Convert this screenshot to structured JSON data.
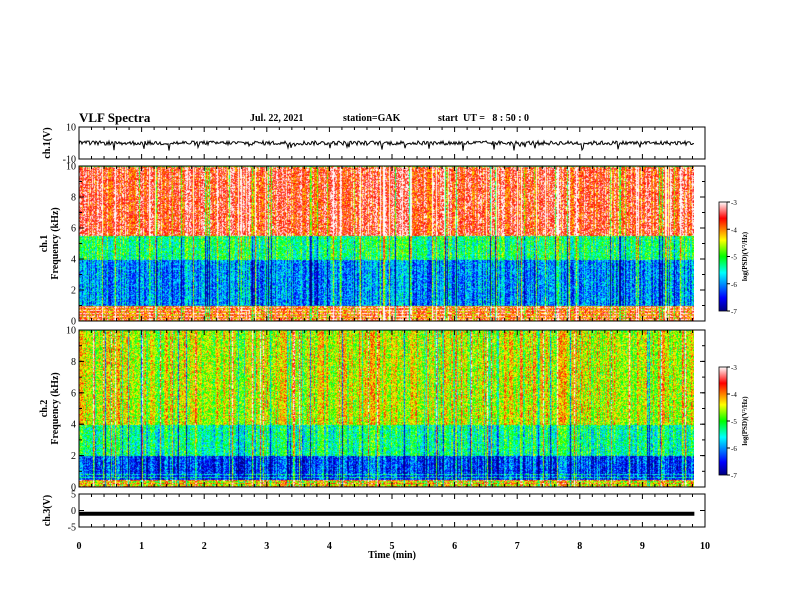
{
  "header": {
    "title": "VLF Spectra",
    "date": "Jul. 22, 2021",
    "station": "station=GAK",
    "start": "start  UT =   8 : 50 : 0"
  },
  "chart_data": [
    {
      "type": "line",
      "panel": "ch1-waveform",
      "ylabel": "ch.1(V)",
      "ylim": [
        -10,
        10
      ],
      "yticks": [
        "10",
        "-10"
      ],
      "xlim": [
        0,
        10
      ],
      "series": [
        {
          "values_summary": "noisy waveform centered near 0 V with occasional negative spikes to about -4 V"
        }
      ]
    },
    {
      "type": "heatmap",
      "panel": "ch1-spectrogram",
      "ylabel_line1": "ch.1",
      "ylabel_line2": "Frequency  (kHz)",
      "ylim": [
        0,
        10
      ],
      "yticks": [
        "0",
        "2",
        "4",
        "6",
        "8",
        "10"
      ],
      "xlim": [
        0,
        10
      ],
      "data_end_min": 9.83,
      "colorbar": {
        "label": "log(PSD)(V²/Hz)",
        "range": [
          -7,
          -3
        ],
        "ticks": [
          "-3",
          "-4",
          "-5",
          "-6",
          "-7"
        ]
      },
      "bands": [
        {
          "fmin": 0,
          "fmax": 1,
          "level": -4.0,
          "note": "banded narrowband lines"
        },
        {
          "fmin": 1,
          "fmax": 4,
          "level": -6.0
        },
        {
          "fmin": 4,
          "fmax": 5.5,
          "level": -5.2
        },
        {
          "fmin": 5.5,
          "fmax": 10,
          "level": -3.5
        }
      ]
    },
    {
      "type": "heatmap",
      "panel": "ch2-spectrogram",
      "ylabel_line1": "ch.2",
      "ylabel_line2": "Frequency  (kHz)",
      "ylim": [
        0,
        10
      ],
      "yticks": [
        "0",
        "2",
        "4",
        "6",
        "8",
        "10"
      ],
      "xlim": [
        0,
        10
      ],
      "data_end_min": 9.83,
      "colorbar": {
        "label": "log(PSD)(V²/Hz)",
        "range": [
          -7,
          -3
        ],
        "ticks": [
          "-3",
          "-4",
          "-5",
          "-6",
          "-7"
        ]
      },
      "bands": [
        {
          "fmin": 0,
          "fmax": 0.5,
          "level": -4.5
        },
        {
          "fmin": 0.5,
          "fmax": 2,
          "level": -6.3
        },
        {
          "fmin": 2,
          "fmax": 4,
          "level": -5.3
        },
        {
          "fmin": 4,
          "fmax": 10,
          "level": -4.5
        }
      ]
    },
    {
      "type": "line",
      "panel": "ch3-waveform",
      "ylabel": "ch.3(V)",
      "ylim": [
        -5,
        5
      ],
      "yticks": [
        "5",
        "0",
        "-5"
      ],
      "xlim": [
        0,
        10
      ],
      "series": [
        {
          "values_summary": "flat line at about -1 V"
        }
      ],
      "constant_value": -1
    }
  ],
  "xaxis": {
    "label": "Time  (min)",
    "ticks": [
      "0",
      "1",
      "2",
      "3",
      "4",
      "5",
      "6",
      "7",
      "8",
      "9",
      "10"
    ]
  }
}
